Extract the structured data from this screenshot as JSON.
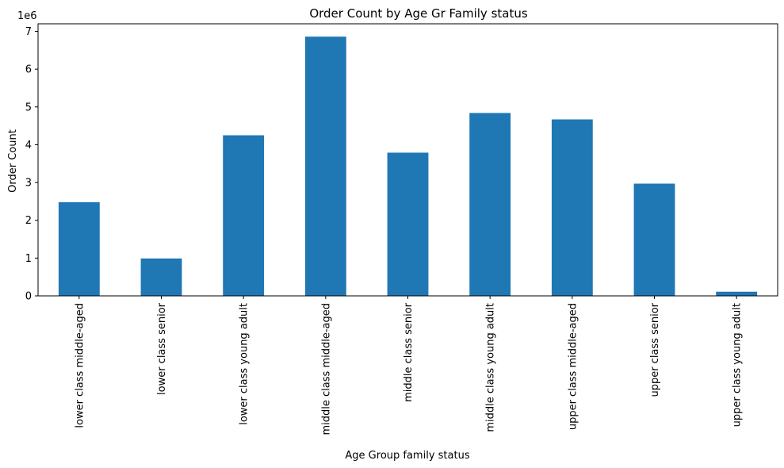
{
  "chart_data": {
    "type": "bar",
    "title": "Order Count by Age Gr Family status",
    "xlabel": "Age Group family status",
    "ylabel": "Order Count",
    "y_multiplier_label": "1e6",
    "ylim": [
      0,
      7.2
    ],
    "y_ticks": [
      0,
      1,
      2,
      3,
      4,
      5,
      6,
      7
    ],
    "grid": false,
    "legend": "none",
    "bar_color": "#1f77b4",
    "categories": [
      "lower class middle-aged",
      "lower class senior",
      "lower class young adult",
      "middle class middle-aged",
      "middle class senior",
      "middle class young adult",
      "upper class middle-aged",
      "upper class senior",
      "upper class young adult"
    ],
    "values": [
      2.48,
      0.99,
      4.25,
      6.86,
      3.79,
      4.84,
      4.67,
      2.97,
      0.11
    ]
  }
}
